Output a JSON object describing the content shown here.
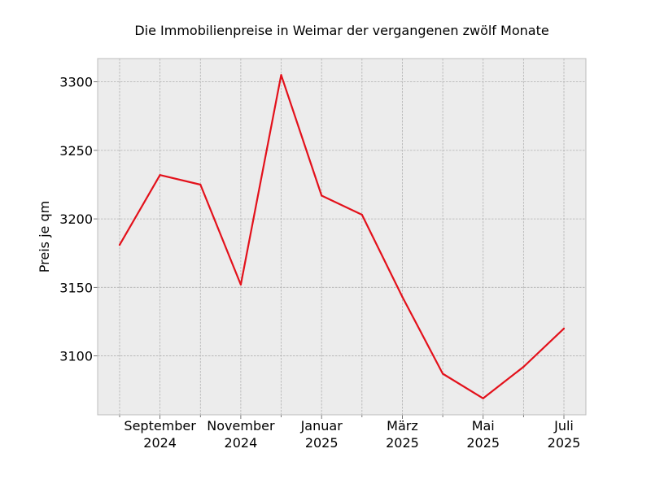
{
  "chart_data": {
    "type": "line",
    "title": "Die Immobilienpreise in Weimar der vergangenen zwölf Monate",
    "xlabel": "",
    "ylabel": "Preis je qm",
    "x": [
      "2024-08",
      "2024-09",
      "2024-10",
      "2024-11",
      "2024-12",
      "2025-01",
      "2025-02",
      "2025-03",
      "2025-04",
      "2025-05",
      "2025-06",
      "2025-07"
    ],
    "series": [
      {
        "values": [
          3181,
          3232,
          3225,
          3152,
          3305,
          3217,
          3203,
          3143,
          3087,
          3069,
          3092,
          3120
        ],
        "color": "#e3111b"
      }
    ],
    "ylim": [
      3057,
      3317
    ],
    "yticks": [
      3100,
      3150,
      3200,
      3250,
      3300
    ],
    "xtick_labels": [
      {
        "line1": "September",
        "line2": "2024"
      },
      {
        "line1": "November",
        "line2": "2024"
      },
      {
        "line1": "Januar",
        "line2": "2025"
      },
      {
        "line1": "März",
        "line2": "2025"
      },
      {
        "line1": "Mai",
        "line2": "2025"
      },
      {
        "line1": "Juli",
        "line2": "2025"
      }
    ],
    "grid": true,
    "background": "#ececec",
    "grid_color": "#b0b0b0"
  }
}
